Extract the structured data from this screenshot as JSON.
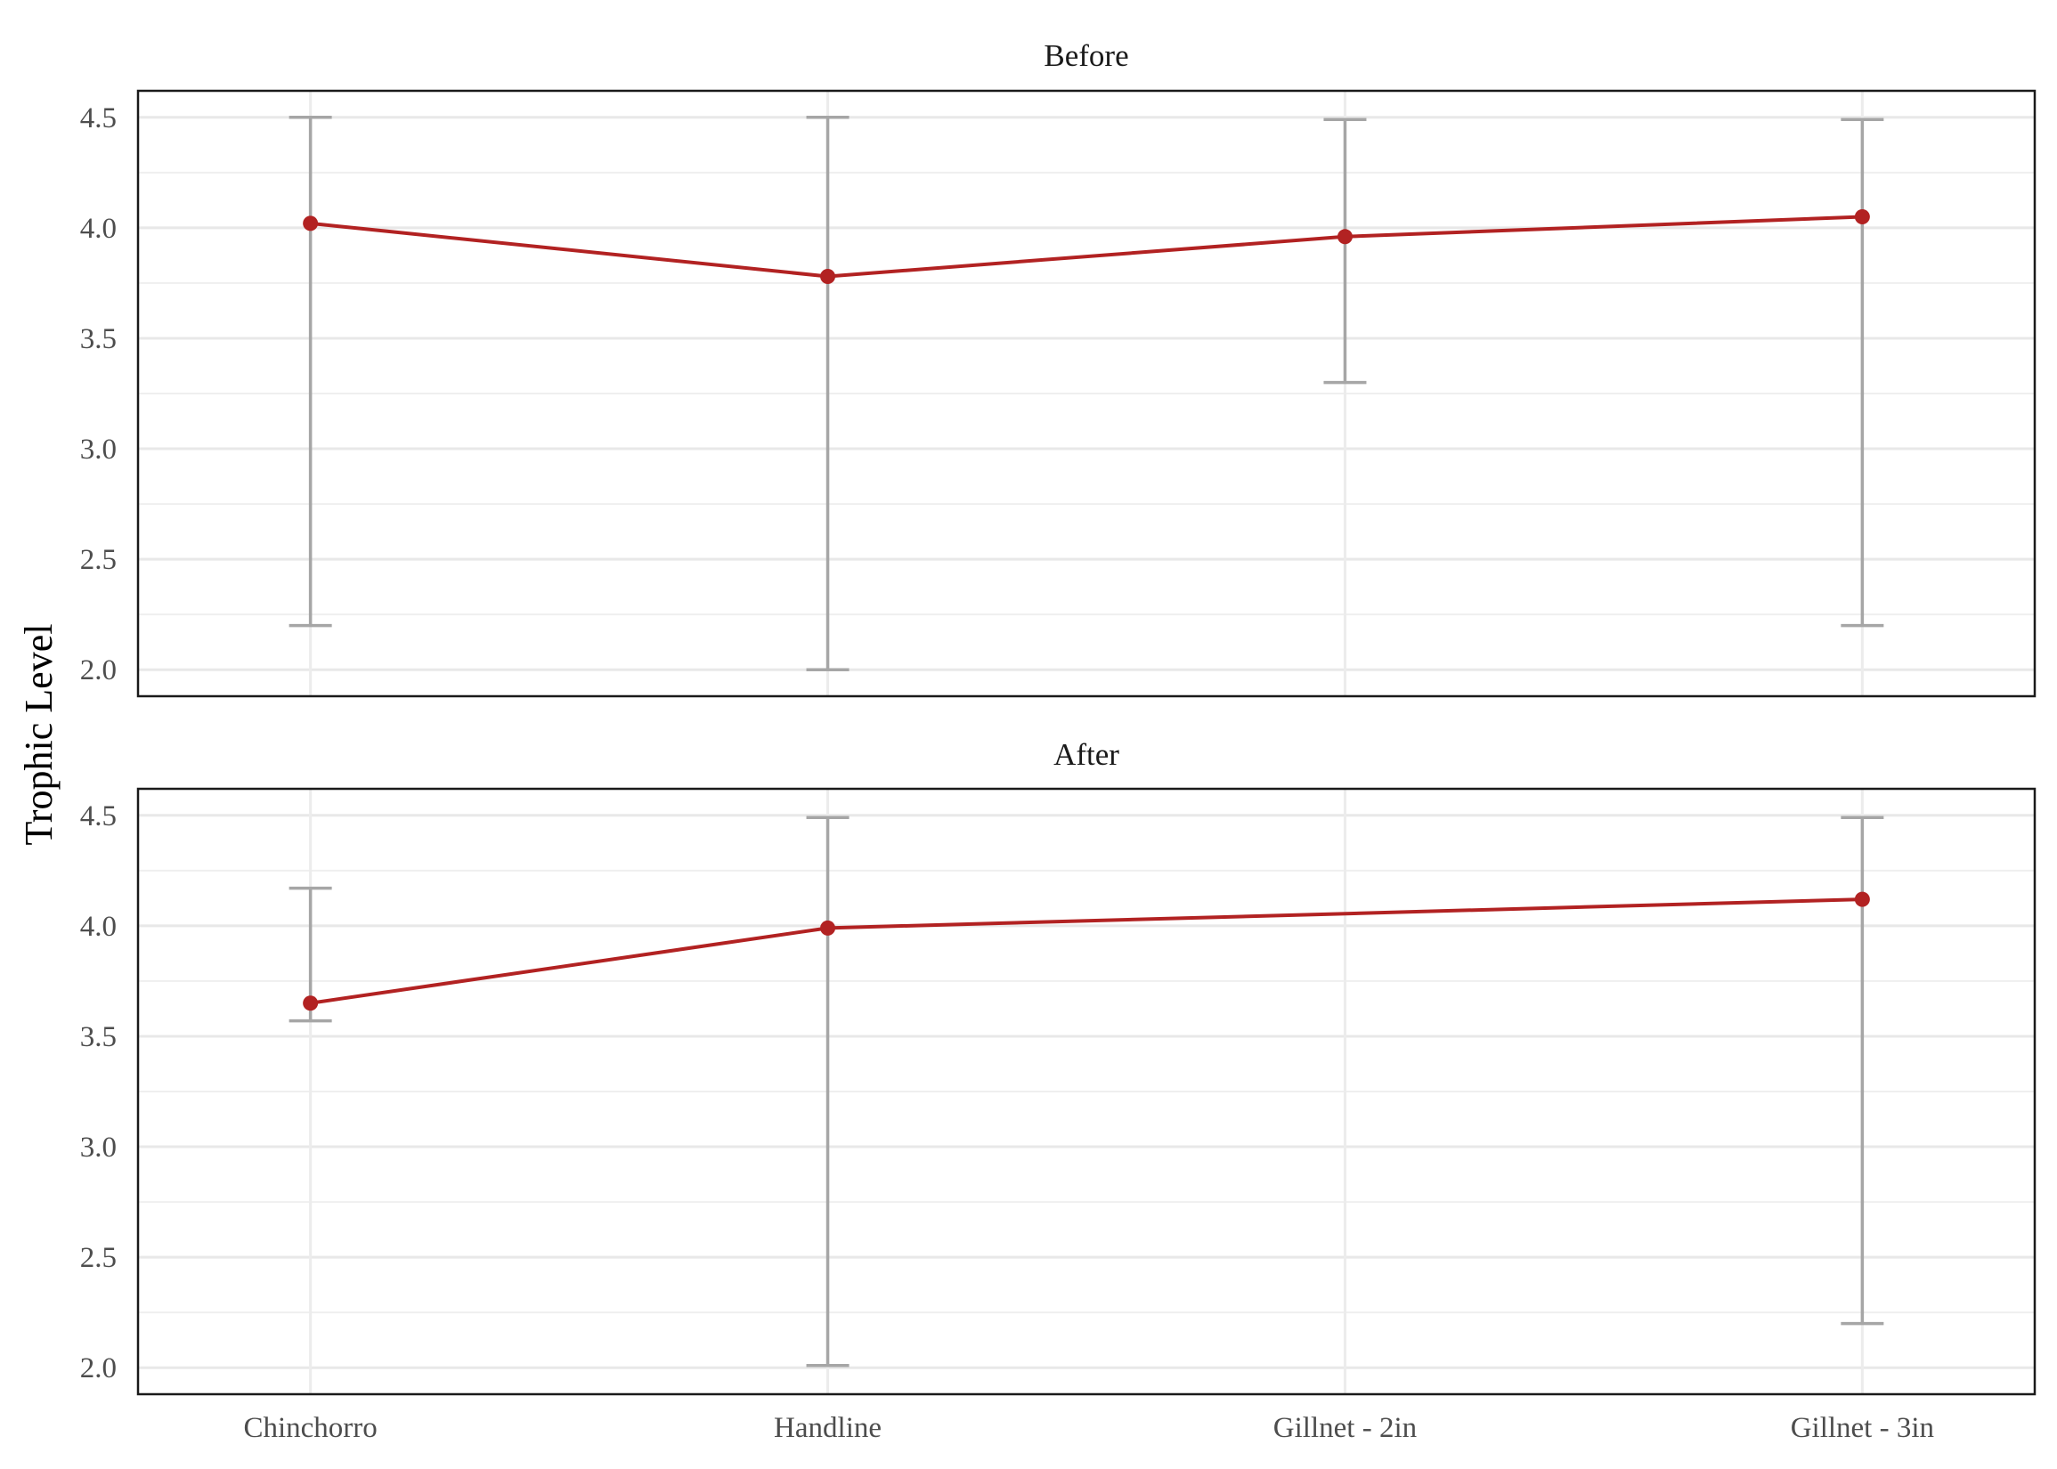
{
  "chart_data": {
    "type": "line",
    "ylabel": "Trophic Level",
    "xlabel": "",
    "categories": [
      "Chinchorro",
      "Handline",
      "Gillnet - 2in",
      "Gillnet - 3in"
    ],
    "ylim": [
      1.88,
      4.62
    ],
    "yticks": [
      2.0,
      2.5,
      3.0,
      3.5,
      4.0,
      4.5
    ],
    "ytick_labels": [
      "2.0",
      "2.5",
      "3.0",
      "3.5",
      "4.0",
      "4.5"
    ],
    "grid": true,
    "line_color": "#b22222",
    "errorbar_color": "#a6a6a6",
    "panels": [
      {
        "label": "Before",
        "series": [
          {
            "values": [
              4.02,
              3.78,
              3.96,
              4.05
            ],
            "lower": [
              2.2,
              2.0,
              3.3,
              2.2
            ],
            "upper": [
              4.5,
              4.5,
              4.49,
              4.49
            ]
          }
        ]
      },
      {
        "label": "After",
        "series": [
          {
            "values": [
              3.65,
              3.99,
              null,
              4.12
            ],
            "lower": [
              3.57,
              2.01,
              null,
              2.2
            ],
            "upper": [
              4.17,
              4.49,
              null,
              4.49
            ]
          }
        ]
      }
    ]
  }
}
